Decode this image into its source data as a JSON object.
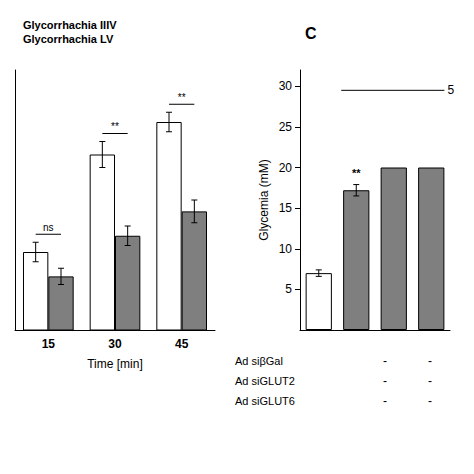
{
  "chart_data": [
    {
      "type": "bar",
      "title": "Glycorrhachia IIIV",
      "subtitle": "Glycorrhachia LV",
      "xlabel": "Time [min]",
      "categories": [
        "15",
        "30",
        "45"
      ],
      "series": [
        {
          "color": "#ffffff",
          "values": [
            18.8,
            24.8,
            26.8
          ],
          "errors": [
            0.6,
            0.8,
            0.6
          ]
        },
        {
          "color": "#7f7f7f",
          "values": [
            17.3,
            19.8,
            21.3
          ],
          "errors": [
            0.5,
            0.6,
            0.7
          ]
        }
      ],
      "annotations": [
        "ns",
        "**",
        "**"
      ],
      "ylim": [
        14,
        30
      ],
      "yticks": [],
      "tick_labels": "x",
      "grid": false
    },
    {
      "type": "bar",
      "title": "C",
      "ylabel": "Glycemia (mM)",
      "categories": [
        null,
        null,
        null,
        null
      ],
      "values": [
        7.0,
        17.2,
        20.0,
        20.0
      ],
      "errors": [
        0.4,
        0.7,
        null,
        null
      ],
      "colors": [
        "#ffffff",
        "#7f7f7f",
        "#7f7f7f",
        "#7f7f7f"
      ],
      "annotations": [
        null,
        "**",
        null,
        null
      ],
      "bracket": {
        "value": 29.5,
        "label": "5"
      },
      "row_labels": [
        "Ad siβGal",
        "Ad siGLUT2",
        "Ad siGLUT6"
      ],
      "row_signs": [
        [
          "-",
          "-"
        ],
        [
          "-",
          "-"
        ],
        [
          "-",
          "-"
        ]
      ],
      "ylim": [
        0,
        32
      ],
      "yticks": [
        5,
        10,
        15,
        20,
        25,
        30
      ],
      "tick_labels": "y",
      "grid": false
    }
  ]
}
